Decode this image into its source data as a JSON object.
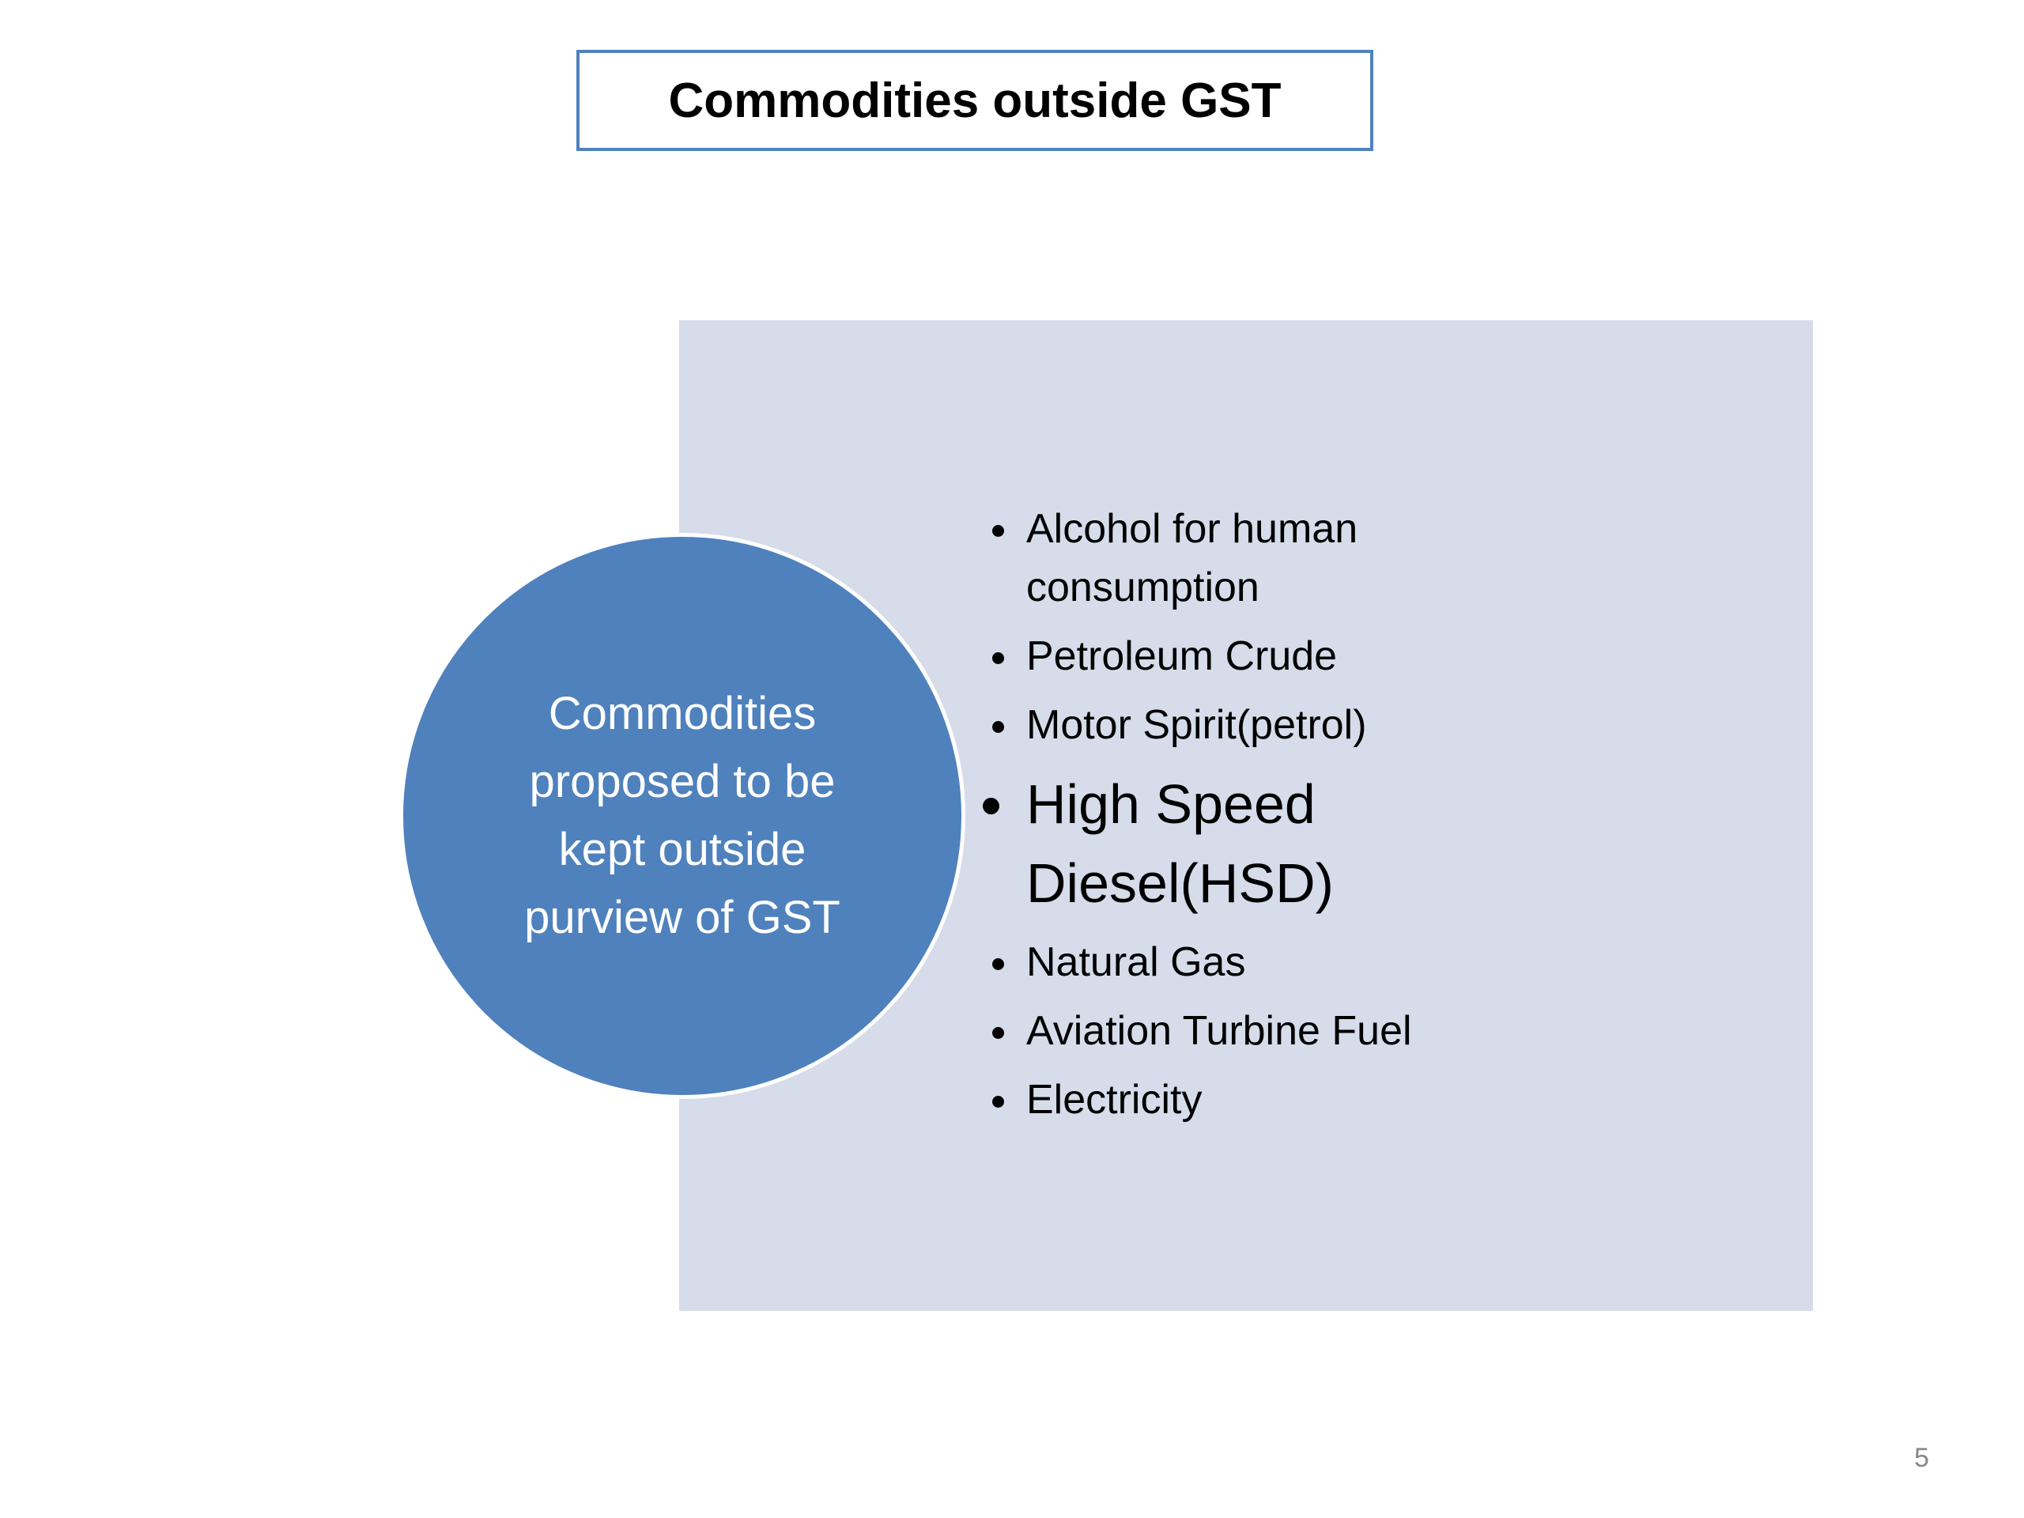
{
  "title": "Commodities outside GST",
  "circle": {
    "lines": [
      "Commodities",
      "proposed to be",
      "kept outside",
      "purview of GST"
    ]
  },
  "items": [
    "Alcohol for human consumption",
    "Petroleum Crude",
    "Motor Spirit(petrol)",
    "High Speed Diesel(HSD)",
    "Natural Gas",
    "Aviation Turbine Fuel",
    "Electricity"
  ],
  "page_number": "5"
}
